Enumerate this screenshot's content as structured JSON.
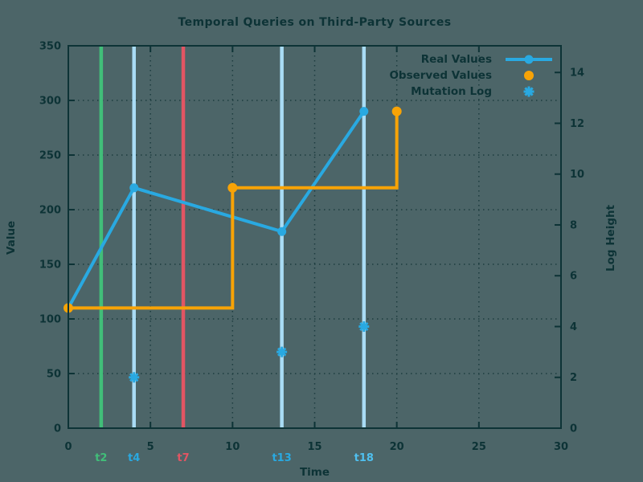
{
  "chart_data": {
    "type": "line",
    "title": "Temporal Queries on Third-Party Sources",
    "xlabel": "Time",
    "ylabel": "Value",
    "y2label": "Log Height",
    "xlim": [
      0,
      30
    ],
    "ylim": [
      0,
      350
    ],
    "y2lim": [
      0,
      15.05
    ],
    "x_ticks": [
      0,
      5,
      10,
      15,
      20,
      25,
      30
    ],
    "y_ticks": [
      0,
      50,
      100,
      150,
      200,
      250,
      300,
      350
    ],
    "y2_ticks": [
      0,
      2,
      4,
      6,
      8,
      10,
      12,
      14
    ],
    "grid": true,
    "legend_position": "top-right-inside",
    "series": [
      {
        "name": "Real Values",
        "axis": "y1",
        "style": "line",
        "marker": "circle",
        "color": "#29A9E1",
        "points": [
          [
            0,
            110
          ],
          [
            4,
            220
          ],
          [
            13,
            180
          ],
          [
            18,
            290
          ]
        ]
      },
      {
        "name": "Observed Values",
        "axis": "y1",
        "style": "step",
        "marker": "circle",
        "color": "#F8A306",
        "points": [
          [
            0,
            110
          ],
          [
            10,
            220
          ],
          [
            20,
            290
          ]
        ]
      },
      {
        "name": "Mutation Log",
        "axis": "y2",
        "style": "scatter",
        "marker": "asterisk",
        "color": "#29A9E1",
        "points": [
          [
            4,
            2
          ],
          [
            13,
            3
          ],
          [
            18,
            4
          ]
        ]
      }
    ],
    "time_markers": [
      {
        "label": "t2",
        "x": 2,
        "line_color": "#41BE79",
        "label_color": "#41BE79"
      },
      {
        "label": "t4",
        "x": 4,
        "line_color": "#A9DCF5",
        "label_color": "#29A9E1"
      },
      {
        "label": "t7",
        "x": 7,
        "line_color": "#E25563",
        "label_color": "#E25563"
      },
      {
        "label": "t13",
        "x": 13,
        "line_color": "#A9DCF5",
        "label_color": "#29A9E1"
      },
      {
        "label": "t18",
        "x": 18,
        "line_color": "#A9DCF5",
        "label_color": "#4FC0EF"
      }
    ],
    "colors": {
      "background": "#4C6568",
      "foreground": "#0D3336",
      "grid": "#1D3C3F"
    }
  }
}
